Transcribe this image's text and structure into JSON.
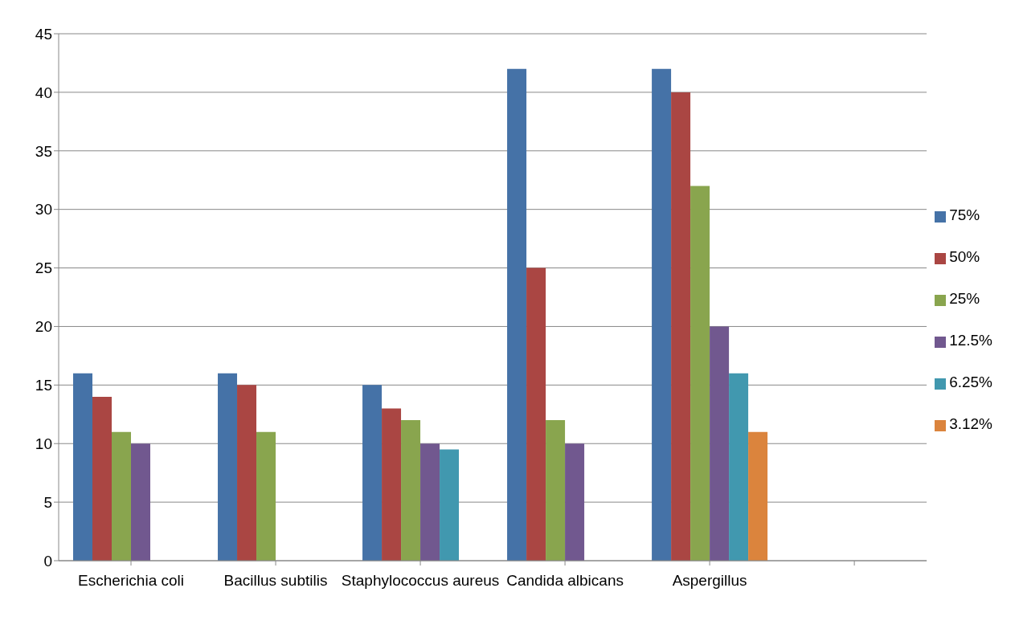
{
  "chart_data": {
    "type": "bar",
    "categories": [
      "Escherichia coli",
      "Bacillus subtilis",
      "Staphylococcus aureus",
      "Candida albicans",
      "Aspergillus",
      null
    ],
    "series": [
      {
        "name": "75%",
        "color": "#4572a7",
        "values": [
          16,
          16,
          15,
          42,
          42,
          null
        ]
      },
      {
        "name": "50%",
        "color": "#aa4643",
        "values": [
          14,
          15,
          13,
          25,
          40,
          null
        ]
      },
      {
        "name": "25%",
        "color": "#89a54e",
        "values": [
          11,
          11,
          12,
          12,
          32,
          null
        ]
      },
      {
        "name": "12.5%",
        "color": "#71588f",
        "values": [
          10,
          null,
          10,
          10,
          20,
          null
        ]
      },
      {
        "name": "6.25%",
        "color": "#4198af",
        "values": [
          null,
          null,
          9.5,
          null,
          16,
          null
        ]
      },
      {
        "name": "3.12%",
        "color": "#db843d",
        "values": [
          null,
          null,
          null,
          null,
          11,
          null
        ]
      }
    ],
    "ylim": [
      0,
      45
    ],
    "yticks": [
      0,
      5,
      10,
      15,
      20,
      25,
      30,
      35,
      40,
      45
    ],
    "grid": "y",
    "legend": "right"
  }
}
